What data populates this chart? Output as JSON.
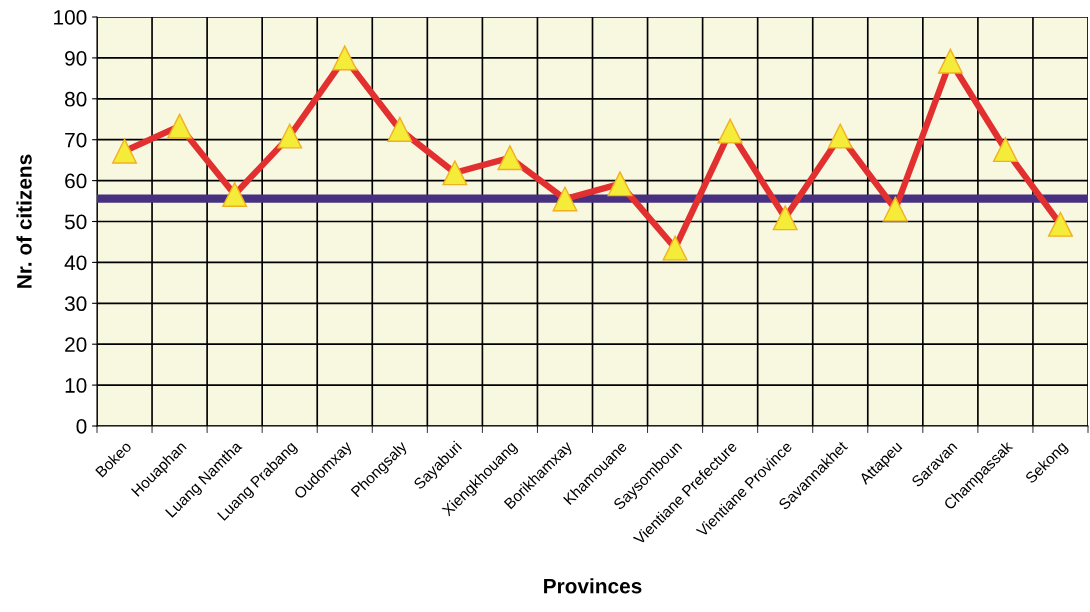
{
  "chart_data": {
    "type": "line",
    "xlabel": "Provinces",
    "ylabel": "Nr. of citizens",
    "categories": [
      "Bokeo",
      "Houaphan",
      "Luang Namtha",
      "Luang Prabang",
      "Oudomxay",
      "Phongsaly",
      "Sayaburi",
      "Xiengkhouang",
      "Borikhamxay",
      "Khamouane",
      "Saysomboun",
      "Vientiane Prefecture",
      "Vientiane Province",
      "Savannakhet",
      "Attapeu",
      "Saravan",
      "Champassak",
      "Sekong"
    ],
    "series": [
      {
        "color": "#e1302f",
        "values": [
          67.2,
          73.3,
          56.6,
          70.9,
          90,
          72.5,
          61.9,
          65.6,
          55.5,
          59.2,
          43.5,
          72.1,
          50.9,
          70.9,
          53,
          89.2,
          67.6,
          49.3
        ]
      }
    ],
    "ref_lines": [
      {
        "axis": "y",
        "value": 55.6,
        "color": "#46307f"
      }
    ],
    "ylim": [
      0,
      100
    ],
    "yticks": [
      0,
      10,
      20,
      30,
      40,
      50,
      60,
      70,
      80,
      90,
      100
    ],
    "grid": true,
    "marker": "triangle",
    "line_style": "solid"
  }
}
